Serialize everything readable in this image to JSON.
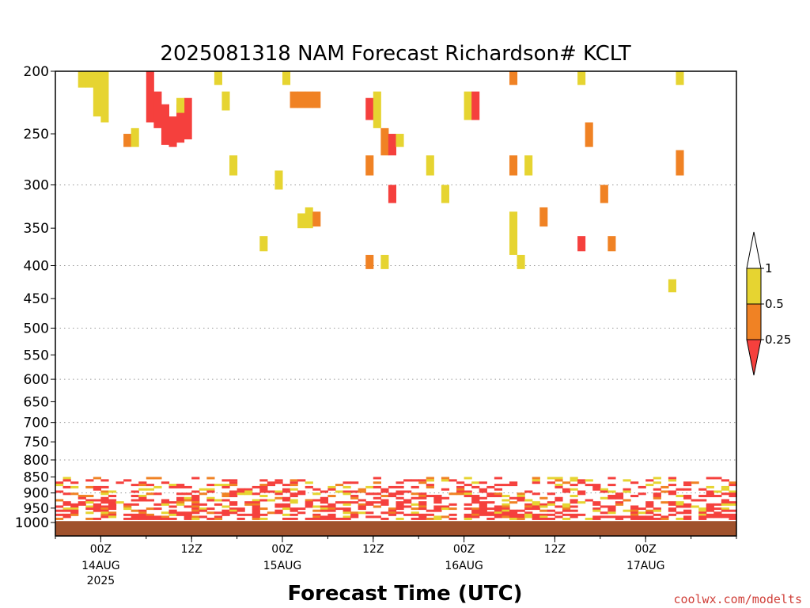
{
  "chart_data": {
    "type": "heatmap",
    "title": "2025081318 NAM Forecast Richardson# KCLT",
    "xlabel": "Forecast Time (UTC)",
    "ylabel": "",
    "y_scale": "log",
    "y_reversed": true,
    "ylim": [
      200,
      1050
    ],
    "y_ticks": [
      200,
      250,
      300,
      350,
      400,
      450,
      500,
      550,
      600,
      650,
      700,
      750,
      800,
      850,
      900,
      950,
      1000
    ],
    "y_tick_labels": [
      "200",
      "250",
      "300",
      "350",
      "400",
      "450",
      "500",
      "550",
      "600",
      "650",
      "700",
      "750",
      "800",
      "850",
      "900",
      "950",
      "1000"
    ],
    "grid": "dotted horizontal at 300, 400, 500, 600, 700, 800, 900",
    "xlim": [
      "2025-08-13T18:00Z",
      "2025-08-17T12:00Z"
    ],
    "x_ticks": [
      {
        "time": "2025-08-14T00:00Z",
        "label": "00Z",
        "sub": "14AUG",
        "sub2": "2025"
      },
      {
        "time": "2025-08-14T12:00Z",
        "label": "12Z",
        "sub": "",
        "sub2": ""
      },
      {
        "time": "2025-08-15T00:00Z",
        "label": "00Z",
        "sub": "15AUG",
        "sub2": ""
      },
      {
        "time": "2025-08-15T12:00Z",
        "label": "12Z",
        "sub": "",
        "sub2": ""
      },
      {
        "time": "2025-08-16T00:00Z",
        "label": "00Z",
        "sub": "16AUG",
        "sub2": ""
      },
      {
        "time": "2025-08-16T12:00Z",
        "label": "12Z",
        "sub": "",
        "sub2": ""
      },
      {
        "time": "2025-08-17T00:00Z",
        "label": "00Z",
        "sub": "17AUG",
        "sub2": ""
      }
    ],
    "colorbar": {
      "levels": [
        "1",
        "0.5",
        "0.25"
      ],
      "bins": [
        {
          "name": "<0.25",
          "color": "#f5403d"
        },
        {
          "name": "0.25-0.5",
          "color": "#f08224"
        },
        {
          "name": "0.5-1",
          "color": "#e6d431"
        },
        {
          "name": ">1",
          "color": "#ffffff"
        }
      ]
    },
    "ground_color": "#a0522d",
    "ground_top_hpa": 995,
    "cells": [
      {
        "t": "2025-08-13T21:00Z",
        "p1": 200,
        "p2": 212,
        "c": "y"
      },
      {
        "t": "2025-08-13T22:00Z",
        "p1": 200,
        "p2": 212,
        "c": "y"
      },
      {
        "t": "2025-08-13T23:00Z",
        "p1": 200,
        "p2": 235,
        "c": "y"
      },
      {
        "t": "2025-08-14T00:00Z",
        "p1": 200,
        "p2": 240,
        "c": "y"
      },
      {
        "t": "2025-08-14T03:00Z",
        "p1": 250,
        "p2": 262,
        "c": "o"
      },
      {
        "t": "2025-08-14T04:00Z",
        "p1": 245,
        "p2": 262,
        "c": "y"
      },
      {
        "t": "2025-08-14T06:00Z",
        "p1": 200,
        "p2": 240,
        "c": "r"
      },
      {
        "t": "2025-08-14T07:00Z",
        "p1": 215,
        "p2": 245,
        "c": "r"
      },
      {
        "t": "2025-08-14T08:00Z",
        "p1": 225,
        "p2": 260,
        "c": "r"
      },
      {
        "t": "2025-08-14T09:00Z",
        "p1": 235,
        "p2": 262,
        "c": "r"
      },
      {
        "t": "2025-08-14T10:00Z",
        "p1": 225,
        "p2": 258,
        "c": "r"
      },
      {
        "t": "2025-08-14T11:00Z",
        "p1": 220,
        "p2": 255,
        "c": "r"
      },
      {
        "t": "2025-08-14T10:00Z",
        "p1": 220,
        "p2": 232,
        "c": "y"
      },
      {
        "t": "2025-08-14T15:00Z",
        "p1": 200,
        "p2": 210,
        "c": "y"
      },
      {
        "t": "2025-08-14T16:00Z",
        "p1": 215,
        "p2": 230,
        "c": "y"
      },
      {
        "t": "2025-08-14T17:00Z",
        "p1": 270,
        "p2": 290,
        "c": "y"
      },
      {
        "t": "2025-08-15T00:00Z",
        "p1": 200,
        "p2": 210,
        "c": "y"
      },
      {
        "t": "2025-08-15T01:00Z",
        "p1": 215,
        "p2": 228,
        "c": "o"
      },
      {
        "t": "2025-08-15T02:00Z",
        "p1": 215,
        "p2": 228,
        "c": "o"
      },
      {
        "t": "2025-08-15T03:00Z",
        "p1": 215,
        "p2": 228,
        "c": "o"
      },
      {
        "t": "2025-08-15T04:00Z",
        "p1": 215,
        "p2": 228,
        "c": "o"
      },
      {
        "t": "2025-08-15T02:00Z",
        "p1": 332,
        "p2": 350,
        "c": "y"
      },
      {
        "t": "2025-08-15T03:00Z",
        "p1": 325,
        "p2": 350,
        "c": "y"
      },
      {
        "t": "2025-08-15T04:00Z",
        "p1": 330,
        "p2": 348,
        "c": "o"
      },
      {
        "t": "2025-08-14T21:00Z",
        "p1": 360,
        "p2": 380,
        "c": "y"
      },
      {
        "t": "2025-08-14T23:00Z",
        "p1": 285,
        "p2": 305,
        "c": "y"
      },
      {
        "t": "2025-08-15T11:00Z",
        "p1": 220,
        "p2": 238,
        "c": "r"
      },
      {
        "t": "2025-08-15T12:00Z",
        "p1": 215,
        "p2": 245,
        "c": "y"
      },
      {
        "t": "2025-08-15T13:00Z",
        "p1": 245,
        "p2": 270,
        "c": "o"
      },
      {
        "t": "2025-08-15T14:00Z",
        "p1": 250,
        "p2": 270,
        "c": "r"
      },
      {
        "t": "2025-08-15T15:00Z",
        "p1": 250,
        "p2": 262,
        "c": "y"
      },
      {
        "t": "2025-08-15T11:00Z",
        "p1": 270,
        "p2": 290,
        "c": "o"
      },
      {
        "t": "2025-08-15T14:00Z",
        "p1": 300,
        "p2": 320,
        "c": "r"
      },
      {
        "t": "2025-08-15T11:00Z",
        "p1": 385,
        "p2": 405,
        "c": "o"
      },
      {
        "t": "2025-08-15T13:00Z",
        "p1": 385,
        "p2": 405,
        "c": "y"
      },
      {
        "t": "2025-08-15T19:00Z",
        "p1": 270,
        "p2": 290,
        "c": "y"
      },
      {
        "t": "2025-08-15T21:00Z",
        "p1": 300,
        "p2": 320,
        "c": "y"
      },
      {
        "t": "2025-08-16T00:00Z",
        "p1": 215,
        "p2": 238,
        "c": "y"
      },
      {
        "t": "2025-08-16T01:00Z",
        "p1": 215,
        "p2": 238,
        "c": "r"
      },
      {
        "t": "2025-08-16T06:00Z",
        "p1": 200,
        "p2": 210,
        "c": "o"
      },
      {
        "t": "2025-08-16T06:00Z",
        "p1": 270,
        "p2": 290,
        "c": "o"
      },
      {
        "t": "2025-08-16T08:00Z",
        "p1": 270,
        "p2": 290,
        "c": "y"
      },
      {
        "t": "2025-08-16T06:00Z",
        "p1": 330,
        "p2": 385,
        "c": "y"
      },
      {
        "t": "2025-08-16T07:00Z",
        "p1": 385,
        "p2": 405,
        "c": "y"
      },
      {
        "t": "2025-08-16T10:00Z",
        "p1": 325,
        "p2": 348,
        "c": "o"
      },
      {
        "t": "2025-08-16T15:00Z",
        "p1": 200,
        "p2": 210,
        "c": "y"
      },
      {
        "t": "2025-08-16T16:00Z",
        "p1": 240,
        "p2": 262,
        "c": "o"
      },
      {
        "t": "2025-08-16T18:00Z",
        "p1": 300,
        "p2": 320,
        "c": "o"
      },
      {
        "t": "2025-08-16T15:00Z",
        "p1": 360,
        "p2": 380,
        "c": "r"
      },
      {
        "t": "2025-08-16T19:00Z",
        "p1": 360,
        "p2": 380,
        "c": "o"
      },
      {
        "t": "2025-08-17T04:00Z",
        "p1": 265,
        "p2": 290,
        "c": "o"
      },
      {
        "t": "2025-08-17T04:00Z",
        "p1": 200,
        "p2": 210,
        "c": "y"
      },
      {
        "t": "2025-08-17T03:00Z",
        "p1": 420,
        "p2": 440,
        "c": "y"
      }
    ]
  },
  "credit": "coolwx.com/modelts"
}
